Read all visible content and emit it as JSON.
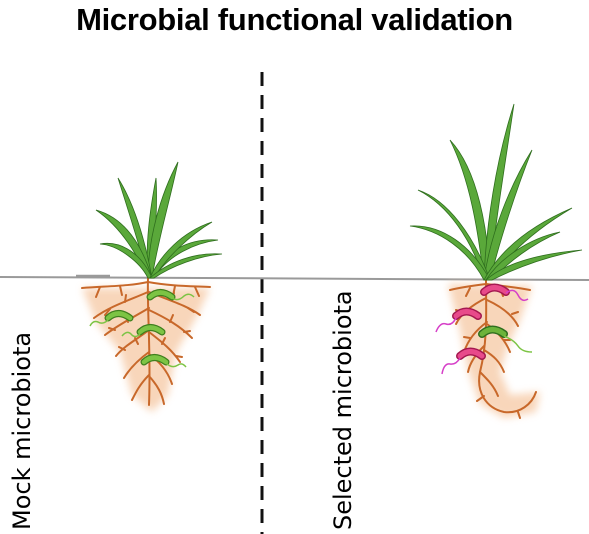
{
  "title": "Microbial functional validation",
  "labels": {
    "mock": "Mock microbiota",
    "selected": "Selected microbiota"
  },
  "colors": {
    "leaf": "#5aa83a",
    "leaf_edge": "#2f6e1e",
    "root": "#c8682a",
    "rhizosphere": "#f7cfae",
    "green_microbe": "#7cc444",
    "pink_microbe": "#e84a8a",
    "soil_line": "#9a9a9a",
    "divider": "#111111"
  }
}
